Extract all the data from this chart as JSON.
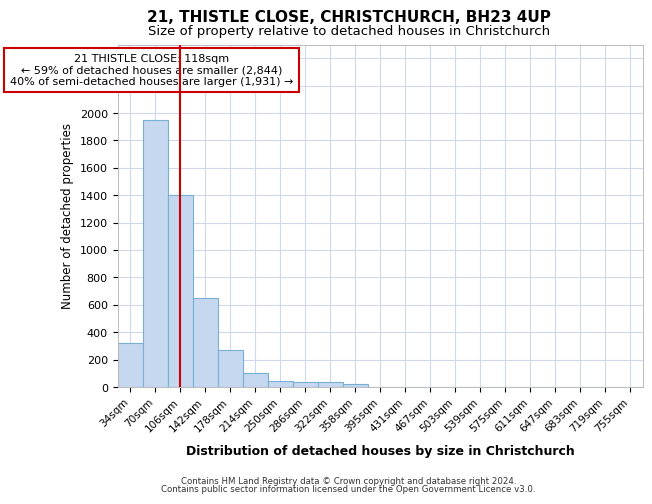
{
  "title1": "21, THISTLE CLOSE, CHRISTCHURCH, BH23 4UP",
  "title2": "Size of property relative to detached houses in Christchurch",
  "xlabel": "Distribution of detached houses by size in Christchurch",
  "ylabel": "Number of detached properties",
  "footer1": "Contains HM Land Registry data © Crown copyright and database right 2024.",
  "footer2": "Contains public sector information licensed under the Open Government Licence v3.0.",
  "annotation_line1": "21 THISTLE CLOSE: 118sqm",
  "annotation_line2": "← 59% of detached houses are smaller (2,844)",
  "annotation_line3": "40% of semi-detached houses are larger (1,931) →",
  "bar_labels": [
    "34sqm",
    "70sqm",
    "106sqm",
    "142sqm",
    "178sqm",
    "214sqm",
    "250sqm",
    "286sqm",
    "322sqm",
    "358sqm",
    "395sqm",
    "431sqm",
    "467sqm",
    "503sqm",
    "539sqm",
    "575sqm",
    "611sqm",
    "647sqm",
    "683sqm",
    "719sqm",
    "755sqm"
  ],
  "bar_values": [
    320,
    1950,
    1400,
    650,
    270,
    100,
    45,
    40,
    35,
    20,
    0,
    0,
    0,
    0,
    0,
    0,
    0,
    0,
    0,
    0,
    0
  ],
  "bar_color": "#c5d8f0",
  "bar_edge_color": "#7aafd4",
  "vline_color": "#cc0000",
  "vline_pos": 2.0,
  "ylim": [
    0,
    2500
  ],
  "yticks": [
    0,
    200,
    400,
    600,
    800,
    1000,
    1200,
    1400,
    1600,
    1800,
    2000,
    2200,
    2400
  ],
  "grid_color": "#d0d8ec",
  "bg_color": "#ffffff",
  "annotation_box_color": "#cc0000",
  "title1_fontsize": 11,
  "title2_fontsize": 9.5
}
